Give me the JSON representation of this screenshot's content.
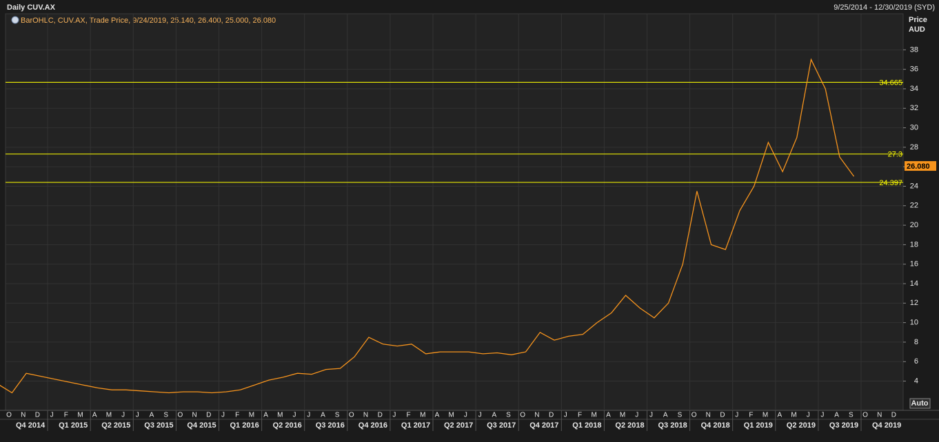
{
  "chart_data": {
    "type": "line",
    "title": "Daily CUV.AX",
    "date_range": "9/25/2014 - 12/30/2019 (SYD)",
    "legend_text": "BarOHLC, CUV.AX, Trade Price, 9/24/2019, 25.140, 26.400, 25.000, 26.080",
    "y_axis_title": "Price",
    "y_axis_unit": "AUD",
    "auto_button": "Auto",
    "color": "#f7941d",
    "line_color": "#ffff00",
    "grid": true,
    "ylim": [
      1,
      41.7
    ],
    "yticks": [
      4,
      6,
      8,
      10,
      12,
      14,
      16,
      18,
      20,
      22,
      24,
      26,
      28,
      30,
      32,
      34,
      36,
      38
    ],
    "hlines": [
      34.665,
      27.3,
      24.397
    ],
    "last_price": {
      "value": 26.08,
      "label": "26.080"
    },
    "month_labels": [
      "O",
      "N",
      "D",
      "J",
      "F",
      "M",
      "A",
      "M",
      "J",
      "J",
      "A",
      "S",
      "O",
      "N",
      "D",
      "J",
      "F",
      "M",
      "A",
      "M",
      "J",
      "J",
      "A",
      "S",
      "O",
      "N",
      "D",
      "J",
      "F",
      "M",
      "A",
      "M",
      "J",
      "J",
      "A",
      "S",
      "O",
      "N",
      "D",
      "J",
      "F",
      "M",
      "A",
      "M",
      "J",
      "J",
      "A",
      "S",
      "O",
      "N",
      "D",
      "J",
      "F",
      "M",
      "A",
      "M",
      "J",
      "J",
      "A",
      "S",
      "O",
      "N",
      "D"
    ],
    "quarter_labels": [
      "Q4 2014",
      "Q1 2015",
      "Q2 2015",
      "Q3 2015",
      "Q4 2015",
      "Q1 2016",
      "Q2 2016",
      "Q3 2016",
      "Q4 2016",
      "Q1 2017",
      "Q2 2017",
      "Q3 2017",
      "Q4 2017",
      "Q1 2018",
      "Q2 2018",
      "Q3 2018",
      "Q4 2018",
      "Q1 2019",
      "Q2 2019",
      "Q3 2019",
      "Q4 2019"
    ],
    "series": [
      {
        "name": "CUV.AX",
        "color": "#f7941d",
        "x": [
          "2014-09",
          "2014-10",
          "2014-11",
          "2014-12",
          "2015-01",
          "2015-02",
          "2015-03",
          "2015-04",
          "2015-05",
          "2015-06",
          "2015-07",
          "2015-08",
          "2015-09",
          "2015-10",
          "2015-11",
          "2015-12",
          "2016-01",
          "2016-02",
          "2016-03",
          "2016-04",
          "2016-05",
          "2016-06",
          "2016-07",
          "2016-08",
          "2016-09",
          "2016-10",
          "2016-11",
          "2016-12",
          "2017-01",
          "2017-02",
          "2017-03",
          "2017-04",
          "2017-05",
          "2017-06",
          "2017-07",
          "2017-08",
          "2017-09",
          "2017-10",
          "2017-11",
          "2017-12",
          "2018-01",
          "2018-02",
          "2018-03",
          "2018-04",
          "2018-05",
          "2018-06",
          "2018-07",
          "2018-08",
          "2018-09",
          "2018-10",
          "2018-11",
          "2018-12",
          "2019-01",
          "2019-02",
          "2019-03",
          "2019-04",
          "2019-05",
          "2019-06",
          "2019-07",
          "2019-08",
          "2019-09"
        ],
        "values": [
          3.7,
          2.8,
          4.8,
          4.5,
          4.2,
          3.9,
          3.6,
          3.3,
          3.1,
          3.1,
          3.0,
          2.9,
          2.8,
          2.9,
          2.9,
          2.8,
          2.9,
          3.1,
          3.6,
          4.1,
          4.4,
          4.8,
          4.7,
          5.2,
          5.3,
          6.5,
          8.5,
          7.8,
          7.6,
          7.8,
          6.8,
          7.0,
          7.0,
          7.0,
          6.8,
          6.9,
          6.7,
          7.0,
          9.0,
          8.2,
          8.6,
          8.8,
          10.0,
          11.0,
          12.8,
          11.5,
          10.5,
          12.0,
          16.0,
          23.5,
          18.0,
          17.5,
          21.5,
          24.0,
          28.5,
          25.5,
          29.0,
          37.0,
          34.0,
          27.0,
          25.0
        ]
      }
    ]
  }
}
